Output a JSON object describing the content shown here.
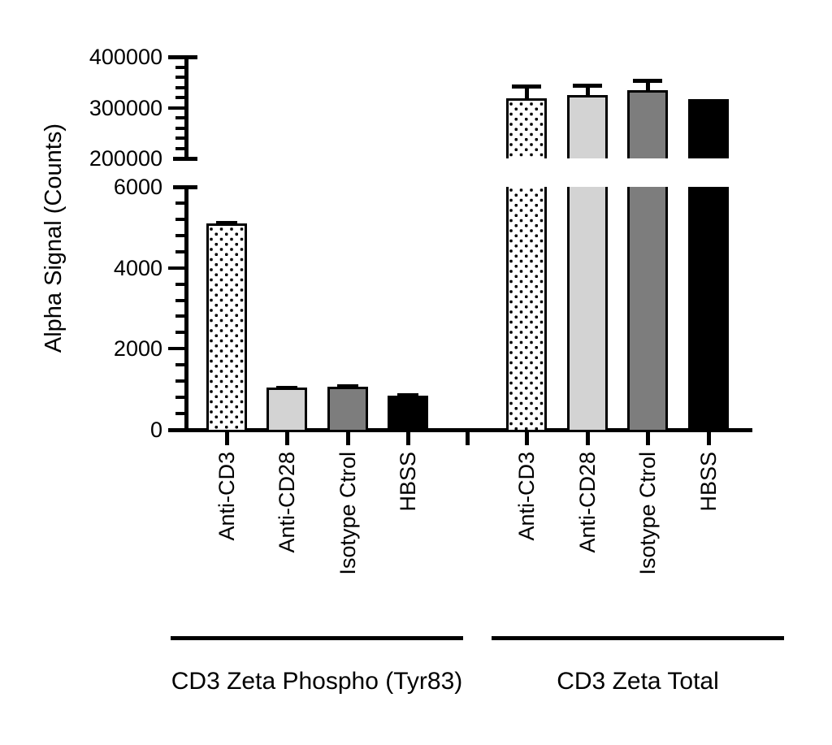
{
  "chart_data": {
    "type": "bar",
    "title": "",
    "ylabel": "Alpha Signal (Counts)",
    "xlabel": "",
    "legend": null,
    "axis": {
      "broken": true,
      "lower_segment": {
        "min": 0,
        "max": 6000,
        "major_step": 2000,
        "minor_step": 400,
        "tick_labels": [
          "0",
          "2000",
          "4000",
          "6000"
        ]
      },
      "upper_segment": {
        "min": 200000,
        "max": 400000,
        "major_step": 100000,
        "minor_step": 20000,
        "tick_labels": [
          "200000",
          "300000",
          "400000"
        ]
      }
    },
    "groups": [
      {
        "label": "CD3 Zeta Phospho (Tyr83)",
        "bars": [
          {
            "category": "Anti-CD3",
            "value": 5050,
            "error_plus": 70,
            "fill": "dotted"
          },
          {
            "category": "Anti-CD28",
            "value": 1000,
            "error_plus": 45,
            "fill": "lightgray"
          },
          {
            "category": "Isotype Ctrol",
            "value": 1025,
            "error_plus": 60,
            "fill": "darkgray"
          },
          {
            "category": "HBSS",
            "value": 800,
            "error_plus": 55,
            "fill": "black"
          }
        ]
      },
      {
        "label": "CD3 Zeta Total",
        "bars": [
          {
            "category": "Anti-CD3",
            "value": 315000,
            "error_plus": 28000,
            "fill": "dotted"
          },
          {
            "category": "Anti-CD28",
            "value": 321000,
            "error_plus": 23000,
            "fill": "lightgray"
          },
          {
            "category": "Isotype Ctrol",
            "value": 331000,
            "error_plus": 22000,
            "fill": "darkgray"
          },
          {
            "category": "HBSS",
            "value": 314000,
            "error_plus": 0,
            "fill": "black"
          }
        ]
      }
    ],
    "colors": {
      "bar_lightgray": "#d3d3d3",
      "bar_darkgray": "#7d7d7d",
      "bar_black": "#000000",
      "dotted_background": "#ffffff",
      "dot": "#000000",
      "axis": "#000000",
      "text": "#000000"
    },
    "fill_legend_meaning": {
      "dotted": "Anti-CD3",
      "lightgray": "Anti-CD28",
      "darkgray": "Isotype Ctrol",
      "black": "HBSS"
    }
  }
}
